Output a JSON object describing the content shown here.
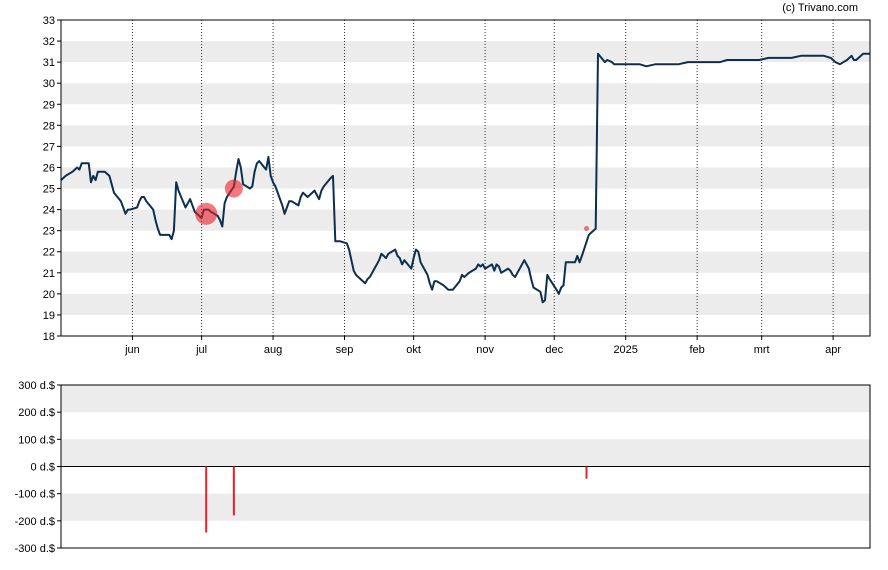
{
  "credit": "(c) Trivano.com",
  "colors": {
    "price_line": "#0d2f4f",
    "band": "#ececec",
    "bar": "#e8202a",
    "marker": "#e8202a",
    "frame": "#000000"
  },
  "chart_data": [
    {
      "type": "line",
      "title": "",
      "xlabel": "",
      "ylabel": "",
      "ylim": [
        18,
        33
      ],
      "yticks": [
        "18",
        "19",
        "20",
        "21",
        "22",
        "23",
        "24",
        "25",
        "26",
        "27",
        "28",
        "29",
        "30",
        "31",
        "32",
        "33"
      ],
      "xticks": [
        "jun",
        "jul",
        "aug",
        "sep",
        "okt",
        "nov",
        "dec",
        "2025",
        "feb",
        "mrt",
        "apr"
      ],
      "xtick_dates": [
        "2024-06-01",
        "2024-07-01",
        "2024-08-01",
        "2024-09-01",
        "2024-10-01",
        "2024-11-01",
        "2024-12-01",
        "2025-01-01",
        "2025-02-01",
        "2025-03-01",
        "2025-04-01"
      ],
      "xlim": [
        "2024-05-01",
        "2025-04-17"
      ],
      "grid": "vertical dotted at ticks, horizontal alternating bands",
      "series": [
        {
          "values": [
            [
              "2024-05-01",
              25.4
            ],
            [
              "2024-05-03",
              25.6
            ],
            [
              "2024-05-06",
              25.8
            ],
            [
              "2024-05-08",
              26.0
            ],
            [
              "2024-05-09",
              25.9
            ],
            [
              "2024-05-10",
              26.2
            ],
            [
              "2024-05-13",
              26.2
            ],
            [
              "2024-05-14",
              25.3
            ],
            [
              "2024-05-15",
              25.6
            ],
            [
              "2024-05-16",
              25.4
            ],
            [
              "2024-05-17",
              25.8
            ],
            [
              "2024-05-20",
              25.8
            ],
            [
              "2024-05-22",
              25.6
            ],
            [
              "2024-05-24",
              24.8
            ],
            [
              "2024-05-27",
              24.4
            ],
            [
              "2024-05-28",
              24.1
            ],
            [
              "2024-05-29",
              23.8
            ],
            [
              "2024-05-30",
              24.0
            ],
            [
              "2024-05-31",
              24.0
            ],
            [
              "2024-06-03",
              24.1
            ],
            [
              "2024-06-04",
              24.4
            ],
            [
              "2024-06-05",
              24.6
            ],
            [
              "2024-06-06",
              24.6
            ],
            [
              "2024-06-07",
              24.4
            ],
            [
              "2024-06-10",
              24.0
            ],
            [
              "2024-06-11",
              23.5
            ],
            [
              "2024-06-12",
              23.1
            ],
            [
              "2024-06-13",
              22.8
            ],
            [
              "2024-06-14",
              22.8
            ],
            [
              "2024-06-17",
              22.8
            ],
            [
              "2024-06-18",
              22.6
            ],
            [
              "2024-06-19",
              23.0
            ],
            [
              "2024-06-20",
              25.3
            ],
            [
              "2024-06-21",
              24.9
            ],
            [
              "2024-06-24",
              24.1
            ],
            [
              "2024-06-25",
              24.3
            ],
            [
              "2024-06-26",
              24.5
            ],
            [
              "2024-06-27",
              24.2
            ],
            [
              "2024-06-28",
              23.9
            ],
            [
              "2024-07-01",
              23.6
            ],
            [
              "2024-07-02",
              24.0
            ],
            [
              "2024-07-03",
              24.0
            ],
            [
              "2024-07-04",
              24.0
            ],
            [
              "2024-07-05",
              23.9
            ],
            [
              "2024-07-08",
              23.7
            ],
            [
              "2024-07-09",
              23.5
            ],
            [
              "2024-07-10",
              23.2
            ],
            [
              "2024-07-11",
              24.3
            ],
            [
              "2024-07-12",
              24.6
            ],
            [
              "2024-07-15",
              25.1
            ],
            [
              "2024-07-16",
              25.8
            ],
            [
              "2024-07-17",
              26.4
            ],
            [
              "2024-07-18",
              26.0
            ],
            [
              "2024-07-19",
              25.2
            ],
            [
              "2024-07-22",
              25.0
            ],
            [
              "2024-07-23",
              25.1
            ],
            [
              "2024-07-24",
              25.8
            ],
            [
              "2024-07-25",
              26.2
            ],
            [
              "2024-07-26",
              26.3
            ],
            [
              "2024-07-29",
              25.9
            ],
            [
              "2024-07-30",
              26.5
            ],
            [
              "2024-07-31",
              25.6
            ],
            [
              "2024-08-01",
              25.3
            ],
            [
              "2024-08-02",
              25.1
            ],
            [
              "2024-08-05",
              24.2
            ],
            [
              "2024-08-06",
              23.8
            ],
            [
              "2024-08-07",
              24.1
            ],
            [
              "2024-08-08",
              24.4
            ],
            [
              "2024-08-09",
              24.4
            ],
            [
              "2024-08-12",
              24.2
            ],
            [
              "2024-08-13",
              24.6
            ],
            [
              "2024-08-14",
              24.8
            ],
            [
              "2024-08-15",
              24.7
            ],
            [
              "2024-08-16",
              24.6
            ],
            [
              "2024-08-19",
              24.9
            ],
            [
              "2024-08-20",
              24.7
            ],
            [
              "2024-08-21",
              24.5
            ],
            [
              "2024-08-22",
              24.9
            ],
            [
              "2024-08-23",
              25.1
            ],
            [
              "2024-08-26",
              25.5
            ],
            [
              "2024-08-27",
              25.6
            ],
            [
              "2024-08-28",
              22.5
            ],
            [
              "2024-08-29",
              22.5
            ],
            [
              "2024-08-30",
              22.5
            ],
            [
              "2024-09-02",
              22.4
            ],
            [
              "2024-09-03",
              22.1
            ],
            [
              "2024-09-04",
              21.6
            ],
            [
              "2024-09-05",
              21.1
            ],
            [
              "2024-09-06",
              20.9
            ],
            [
              "2024-09-09",
              20.6
            ],
            [
              "2024-09-10",
              20.5
            ],
            [
              "2024-09-11",
              20.7
            ],
            [
              "2024-09-12",
              20.8
            ],
            [
              "2024-09-13",
              21.0
            ],
            [
              "2024-09-16",
              21.6
            ],
            [
              "2024-09-17",
              21.9
            ],
            [
              "2024-09-18",
              21.8
            ],
            [
              "2024-09-19",
              21.7
            ],
            [
              "2024-09-20",
              21.9
            ],
            [
              "2024-09-23",
              22.1
            ],
            [
              "2024-09-24",
              21.8
            ],
            [
              "2024-09-25",
              21.7
            ],
            [
              "2024-09-26",
              21.4
            ],
            [
              "2024-09-27",
              21.6
            ],
            [
              "2024-09-30",
              21.2
            ],
            [
              "2024-10-01",
              21.7
            ],
            [
              "2024-10-02",
              22.1
            ],
            [
              "2024-10-03",
              22.0
            ],
            [
              "2024-10-04",
              21.5
            ],
            [
              "2024-10-07",
              20.9
            ],
            [
              "2024-10-08",
              20.5
            ],
            [
              "2024-10-09",
              20.2
            ],
            [
              "2024-10-10",
              20.6
            ],
            [
              "2024-10-11",
              20.6
            ],
            [
              "2024-10-14",
              20.4
            ],
            [
              "2024-10-15",
              20.3
            ],
            [
              "2024-10-16",
              20.2
            ],
            [
              "2024-10-17",
              20.2
            ],
            [
              "2024-10-18",
              20.2
            ],
            [
              "2024-10-21",
              20.6
            ],
            [
              "2024-10-22",
              20.9
            ],
            [
              "2024-10-23",
              20.8
            ],
            [
              "2024-10-24",
              20.9
            ],
            [
              "2024-10-25",
              21.0
            ],
            [
              "2024-10-28",
              21.2
            ],
            [
              "2024-10-29",
              21.4
            ],
            [
              "2024-10-30",
              21.3
            ],
            [
              "2024-10-31",
              21.4
            ],
            [
              "2024-11-01",
              21.2
            ],
            [
              "2024-11-04",
              21.4
            ],
            [
              "2024-11-05",
              21.1
            ],
            [
              "2024-11-06",
              21.4
            ],
            [
              "2024-11-07",
              21.3
            ],
            [
              "2024-11-08",
              21.0
            ],
            [
              "2024-11-11",
              21.2
            ],
            [
              "2024-11-12",
              21.1
            ],
            [
              "2024-11-13",
              20.9
            ],
            [
              "2024-11-14",
              20.8
            ],
            [
              "2024-11-15",
              21.0
            ],
            [
              "2024-11-18",
              21.6
            ],
            [
              "2024-11-19",
              21.4
            ],
            [
              "2024-11-20",
              21.2
            ],
            [
              "2024-11-21",
              20.7
            ],
            [
              "2024-11-22",
              20.3
            ],
            [
              "2024-11-25",
              20.1
            ],
            [
              "2024-11-26",
              19.6
            ],
            [
              "2024-11-27",
              19.7
            ],
            [
              "2024-11-28",
              20.9
            ],
            [
              "2024-11-29",
              20.7
            ],
            [
              "2024-12-02",
              20.2
            ],
            [
              "2024-12-03",
              20.0
            ],
            [
              "2024-12-04",
              20.3
            ],
            [
              "2024-12-05",
              20.4
            ],
            [
              "2024-12-06",
              21.5
            ],
            [
              "2024-12-09",
              21.5
            ],
            [
              "2024-12-10",
              21.5
            ],
            [
              "2024-12-11",
              21.8
            ],
            [
              "2024-12-12",
              21.5
            ],
            [
              "2024-12-13",
              21.8
            ],
            [
              "2024-12-16",
              22.8
            ],
            [
              "2024-12-17",
              22.9
            ],
            [
              "2024-12-18",
              23.0
            ],
            [
              "2024-12-19",
              23.1
            ],
            [
              "2024-12-20",
              31.4
            ],
            [
              "2024-12-23",
              31.0
            ],
            [
              "2024-12-24",
              31.1
            ],
            [
              "2024-12-26",
              31.0
            ],
            [
              "2024-12-27",
              30.9
            ],
            [
              "2024-12-30",
              30.9
            ],
            [
              "2024-12-31",
              30.9
            ],
            [
              "2025-01-03",
              30.9
            ],
            [
              "2025-01-07",
              30.9
            ],
            [
              "2025-01-10",
              30.8
            ],
            [
              "2025-01-14",
              30.9
            ],
            [
              "2025-01-17",
              30.9
            ],
            [
              "2025-01-21",
              30.9
            ],
            [
              "2025-01-24",
              30.9
            ],
            [
              "2025-01-28",
              31.0
            ],
            [
              "2025-01-31",
              31.0
            ],
            [
              "2025-02-04",
              31.0
            ],
            [
              "2025-02-07",
              31.0
            ],
            [
              "2025-02-11",
              31.0
            ],
            [
              "2025-02-14",
              31.1
            ],
            [
              "2025-02-18",
              31.1
            ],
            [
              "2025-02-21",
              31.1
            ],
            [
              "2025-02-25",
              31.1
            ],
            [
              "2025-02-28",
              31.1
            ],
            [
              "2025-03-04",
              31.2
            ],
            [
              "2025-03-07",
              31.2
            ],
            [
              "2025-03-11",
              31.2
            ],
            [
              "2025-03-14",
              31.2
            ],
            [
              "2025-03-18",
              31.3
            ],
            [
              "2025-03-21",
              31.3
            ],
            [
              "2025-03-25",
              31.3
            ],
            [
              "2025-03-28",
              31.3
            ],
            [
              "2025-03-31",
              31.2
            ],
            [
              "2025-04-02",
              31.0
            ],
            [
              "2025-04-04",
              30.9
            ],
            [
              "2025-04-07",
              31.1
            ],
            [
              "2025-04-09",
              31.3
            ],
            [
              "2025-04-10",
              31.1
            ],
            [
              "2025-04-11",
              31.1
            ],
            [
              "2025-04-14",
              31.4
            ],
            [
              "2025-04-17",
              31.4
            ]
          ]
        }
      ],
      "markers": [
        {
          "x": "2024-07-03",
          "y": 23.8,
          "size": "large"
        },
        {
          "x": "2024-07-15",
          "y": 25.0,
          "size": "medium"
        },
        {
          "x": "2024-12-15",
          "y": 23.1,
          "size": "small"
        }
      ]
    },
    {
      "type": "bar",
      "title": "",
      "xlabel": "",
      "ylabel": "",
      "ylim": [
        -300,
        300
      ],
      "yticks": [
        "300 d.$",
        "200 d.$",
        "100 d.$",
        "0 d.$",
        "-100 d.$",
        "-200 d.$",
        "-300 d.$"
      ],
      "ytick_values": [
        300,
        200,
        100,
        0,
        -100,
        -200,
        -300
      ],
      "grid": "horizontal alternating bands",
      "bars": [
        {
          "x": "2024-07-03",
          "value": -243
        },
        {
          "x": "2024-07-15",
          "value": -180
        },
        {
          "x": "2024-12-15",
          "value": -45
        }
      ]
    }
  ]
}
